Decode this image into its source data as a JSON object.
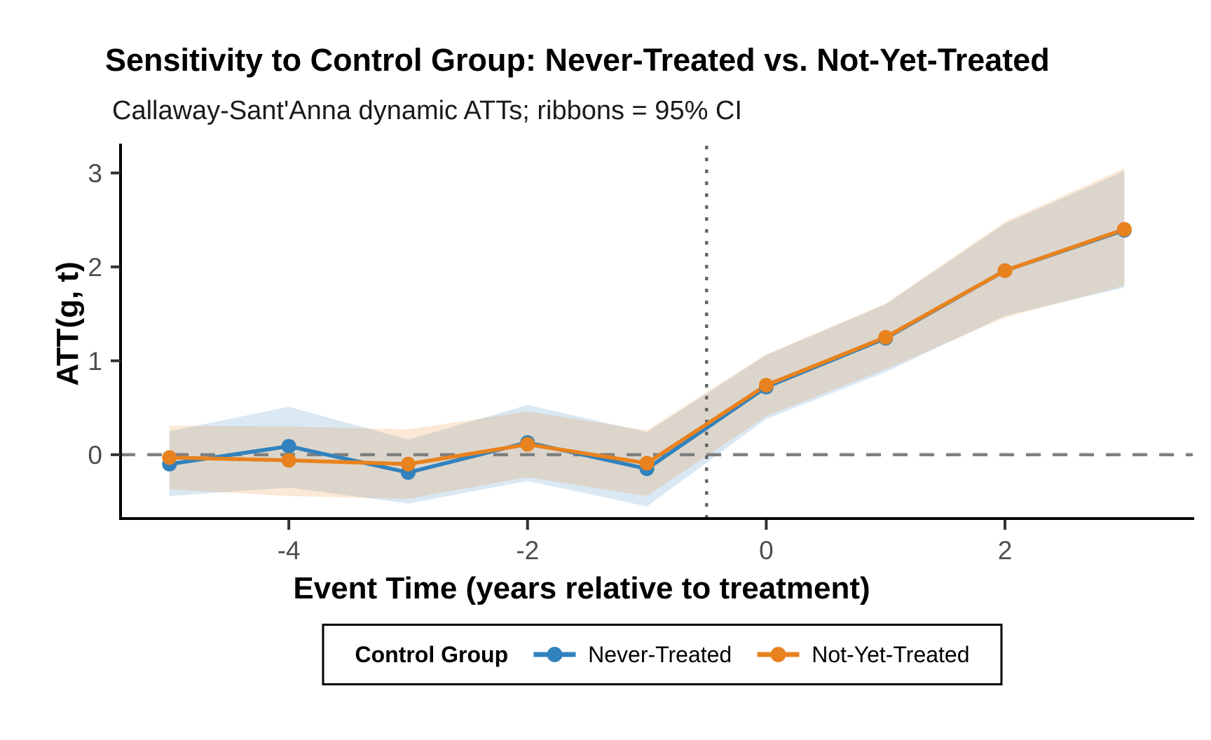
{
  "header": {
    "title": "Sensitivity to Control Group: Never-Treated vs. Not-Yet-Treated",
    "subtitle": "Callaway-Sant'Anna dynamic ATTs; ribbons = 95% CI"
  },
  "legend": {
    "title": "Control Group",
    "entries": [
      {
        "label": "Never-Treated",
        "color": "#3182BD"
      },
      {
        "label": "Not-Yet-Treated",
        "color": "#E8821E"
      }
    ]
  },
  "chart_data": {
    "type": "line",
    "title": "Sensitivity to Control Group: Never-Treated vs. Not-Yet-Treated",
    "subtitle": "Callaway-Sant'Anna dynamic ATTs; ribbons = 95% CI",
    "xlabel": "Event Time (years relative to treatment)",
    "ylabel": "ATT(g, t)",
    "x": [
      -5,
      -4,
      -3,
      -2,
      -1,
      0,
      1,
      2,
      3
    ],
    "x_tick_values": [
      -4,
      -2,
      0,
      2
    ],
    "x_tick_labels": [
      "-4",
      "-2",
      "0",
      "2"
    ],
    "y_tick_values": [
      0,
      1,
      2,
      3
    ],
    "y_tick_labels": [
      "0",
      "1",
      "2",
      "3"
    ],
    "xlim": [
      -5.41,
      3.55
    ],
    "ylim": [
      -0.665,
      3.215
    ],
    "grid": false,
    "legend_position": "bottom",
    "reference_lines": {
      "hline_y": 0,
      "hline_style": "dashed",
      "hline_color": "#7F7F7F",
      "vline_x": -0.5,
      "vline_style": "dotted",
      "vline_color": "#666666"
    },
    "ribbon_meaning": "95% CI",
    "ribbon_opacity": 0.18,
    "series": [
      {
        "name": "Never-Treated",
        "color": "#3182BD",
        "values": [
          -0.1,
          0.09,
          -0.19,
          0.13,
          -0.15,
          0.72,
          1.24,
          1.96,
          2.39
        ],
        "ci_lower": [
          -0.44,
          -0.35,
          -0.52,
          -0.28,
          -0.55,
          0.38,
          0.88,
          1.48,
          1.78
        ],
        "ci_upper": [
          0.25,
          0.51,
          0.16,
          0.53,
          0.24,
          1.06,
          1.6,
          2.46,
          3.02
        ]
      },
      {
        "name": "Not-Yet-Treated",
        "color": "#E8821E",
        "values": [
          -0.03,
          -0.06,
          -0.1,
          0.11,
          -0.09,
          0.74,
          1.25,
          1.96,
          2.4
        ],
        "ci_lower": [
          -0.37,
          -0.44,
          -0.47,
          -0.24,
          -0.44,
          0.41,
          0.91,
          1.46,
          1.8
        ],
        "ci_upper": [
          0.31,
          0.3,
          0.27,
          0.46,
          0.26,
          1.07,
          1.61,
          2.48,
          3.05
        ]
      }
    ],
    "axis": {
      "line_color": "#000000",
      "tick_label_color": "#4D4D4D"
    }
  }
}
